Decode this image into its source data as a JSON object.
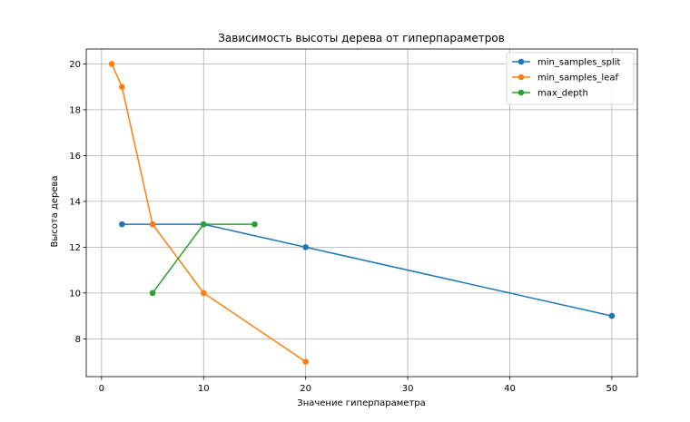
{
  "chart_data": {
    "type": "line",
    "title": "Зависимость высоты дерева от гиперпараметров",
    "xlabel": "Значение гиперпараметра",
    "ylabel": "Высота дерева",
    "xlim": [
      -1.5,
      52.5
    ],
    "ylim": [
      6.35,
      20.65
    ],
    "xticks": [
      0,
      10,
      20,
      30,
      40,
      50
    ],
    "yticks": [
      8,
      10,
      12,
      14,
      16,
      18,
      20
    ],
    "grid": true,
    "legend_position": "top-right",
    "series": [
      {
        "name": "min_samples_split",
        "color": "#1f77b4",
        "x": [
          2,
          5,
          10,
          20,
          50
        ],
        "y": [
          13,
          13,
          13,
          12,
          9
        ]
      },
      {
        "name": "min_samples_leaf",
        "color": "#ff7f0e",
        "x": [
          1,
          2,
          5,
          10,
          20
        ],
        "y": [
          20,
          19,
          13,
          10,
          7
        ]
      },
      {
        "name": "max_depth",
        "color": "#2ca02c",
        "x": [
          5,
          10,
          15
        ],
        "y": [
          10,
          13,
          13
        ]
      }
    ]
  }
}
